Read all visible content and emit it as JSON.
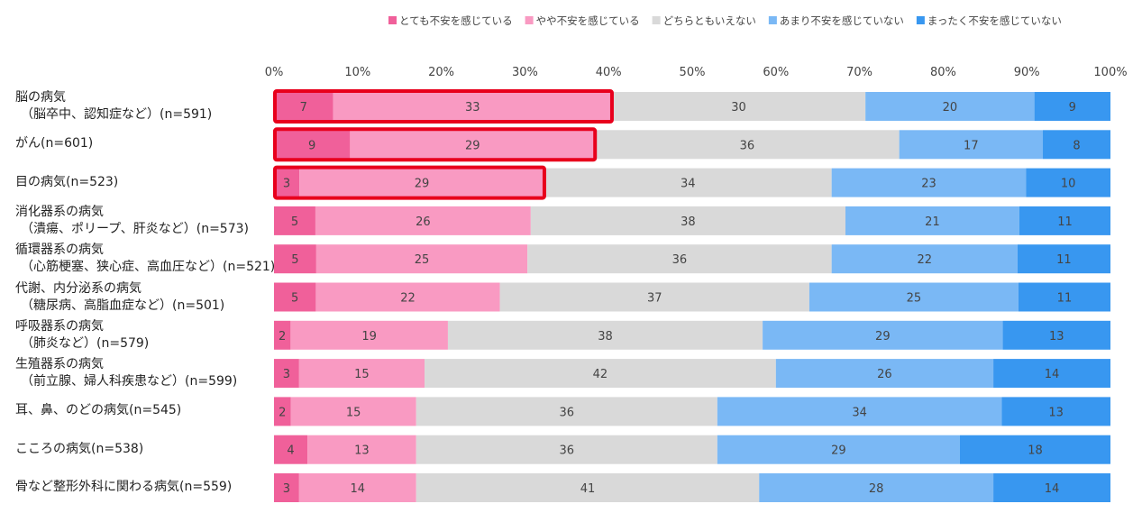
{
  "chart_data": {
    "type": "bar",
    "orientation": "horizontal",
    "stacked": true,
    "percent_scale": true,
    "xlim": [
      0,
      100
    ],
    "x_ticks": [
      "0%",
      "10%",
      "20%",
      "30%",
      "40%",
      "50%",
      "60%",
      "70%",
      "80%",
      "90%",
      "100%"
    ],
    "legend_position": "top-right",
    "grid": false,
    "categories": [
      [
        "脳の病気",
        "（脳卒中、認知症など）(n=591)"
      ],
      [
        "がん(n=601)"
      ],
      [
        "目の病気(n=523)"
      ],
      [
        "消化器系の病気",
        "（潰瘍、ポリープ、肝炎など）(n=573)"
      ],
      [
        "循環器系の病気",
        "（心筋梗塞、狭心症、高血圧など）(n=521)"
      ],
      [
        "代謝、内分泌系の病気",
        "（糖尿病、高脂血症など）(n=501)"
      ],
      [
        "呼吸器系の病気",
        "（肺炎など）(n=579)"
      ],
      [
        "生殖器系の病気",
        "（前立腺、婦人科疾患など）(n=599)"
      ],
      [
        "耳、鼻、のどの病気(n=545)"
      ],
      [
        "こころの病気(n=538)"
      ],
      [
        "骨など整形外科に関わる病気(n=559)"
      ]
    ],
    "series": [
      {
        "name": "とても不安を感じている",
        "color": "#f0609a",
        "values": [
          7,
          9,
          3,
          5,
          5,
          5,
          2,
          3,
          2,
          4,
          3
        ]
      },
      {
        "name": "やや不安を感じている",
        "color": "#f99ac2",
        "values": [
          33,
          29,
          29,
          26,
          25,
          22,
          19,
          15,
          15,
          13,
          14
        ]
      },
      {
        "name": "どちらともいえない",
        "color": "#d9d9d9",
        "values": [
          30,
          36,
          34,
          38,
          36,
          37,
          38,
          42,
          36,
          36,
          41
        ]
      },
      {
        "name": "あまり不安を感じていない",
        "color": "#7ab8f5",
        "values": [
          20,
          17,
          23,
          21,
          22,
          25,
          29,
          26,
          34,
          29,
          28
        ]
      },
      {
        "name": "まったく不安を感じていない",
        "color": "#3897f0",
        "values": [
          9,
          8,
          10,
          11,
          11,
          11,
          13,
          14,
          13,
          18,
          14
        ]
      }
    ],
    "highlighted_categories": [
      0,
      1,
      2
    ],
    "highlight_color": "#e8001c"
  }
}
